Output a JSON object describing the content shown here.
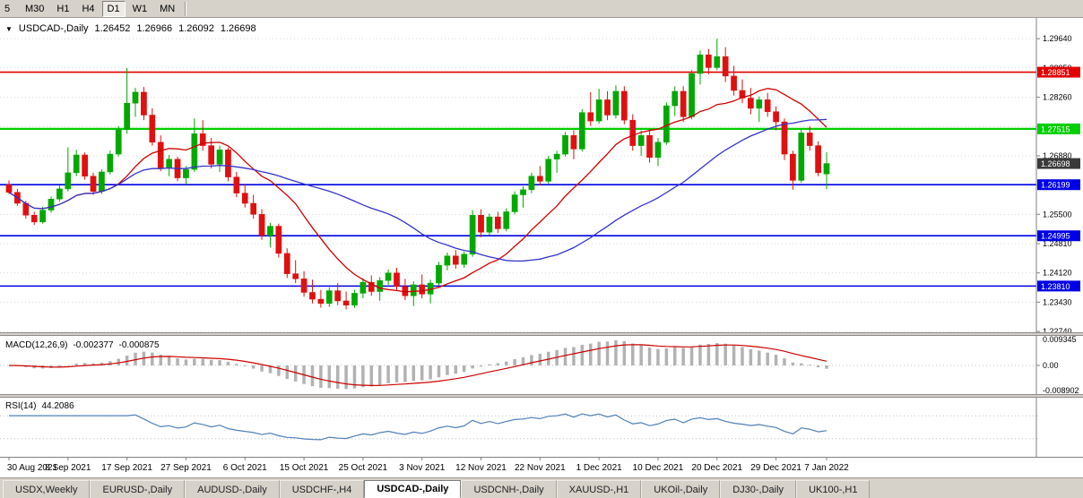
{
  "toolbar": {
    "timeframes": [
      "5",
      "M30",
      "H1",
      "H4",
      "D1",
      "W1",
      "MN"
    ],
    "active": "D1"
  },
  "chart": {
    "dropdown_icon": "▼",
    "symbol_label": "USDCAD-,Daily",
    "open": "1.26452",
    "high": "1.26966",
    "low": "1.26092",
    "close": "1.26698"
  },
  "price_axis": {
    "ticks": [
      "1.29640",
      "1.28950",
      "1.28260",
      "1.27570",
      "1.26880",
      "1.26190",
      "1.25500",
      "1.24810",
      "1.24120",
      "1.23430",
      "1.22740"
    ],
    "levels": [
      {
        "label": "1.28851",
        "price": 1.28851,
        "color": "#e00000",
        "width": 1.6,
        "kind": "resistance-line"
      },
      {
        "label": "1.27515",
        "price": 1.27515,
        "color": "#00ce00",
        "width": 2.2,
        "kind": "pivot-line"
      },
      {
        "label": "1.26199",
        "price": 1.26199,
        "color": "#0000e6",
        "width": 1.6,
        "kind": "support-line"
      },
      {
        "label": "1.24995",
        "price": 1.24995,
        "color": "#0000e6",
        "width": 1.6,
        "kind": "support-line"
      },
      {
        "label": "1.23810",
        "price": 1.2381,
        "color": "#0000e6",
        "width": 1.6,
        "kind": "support-line"
      }
    ],
    "current_price": {
      "label": "1.26698",
      "price": 1.26698,
      "color": "#3a3a3a"
    }
  },
  "macd": {
    "label": "MACD(12,26,9)",
    "main_value": "-0.002377",
    "signal_value": "-0.000875",
    "axis": [
      "0.009345",
      "0.00",
      "-0.008902"
    ]
  },
  "rsi": {
    "label": "RSI(14)",
    "value": "44.2086",
    "levels": [
      "70",
      "30"
    ],
    "level_values": [
      70,
      30
    ]
  },
  "time_axis": {
    "labels": [
      "30 Aug 2021",
      "8 Sep 2021",
      "17 Sep 2021",
      "27 Sep 2021",
      "6 Oct 2021",
      "15 Oct 2021",
      "25 Oct 2021",
      "3 Nov 2021",
      "12 Nov 2021",
      "22 Nov 2021",
      "1 Dec 2021",
      "10 Dec 2021",
      "20 Dec 2021",
      "29 Dec 2021",
      "7 Jan 2022"
    ],
    "indices": [
      0,
      7,
      14,
      21,
      28,
      35,
      42,
      49,
      56,
      63,
      70,
      77,
      84,
      91,
      97
    ]
  },
  "tabs": {
    "items": [
      "USDX,Weekly",
      "EURUSD-,Daily",
      "AUDUSD-,Daily",
      "USDCHF-,H4",
      "USDCAD-,Daily",
      "USDCNH-,Daily",
      "XAUUSD-,H1",
      "UKOil-,Daily",
      "DJ30-,Daily",
      "UK100-,H1"
    ],
    "active": "USDCAD-,Daily"
  },
  "colors": {
    "candle_up": "#00a800",
    "candle_down": "#e01010",
    "ma_fast": "#d00000",
    "ma_slow": "#3333cc",
    "macd_hist": "#b2b2b2",
    "macd_signal": "#cc0000",
    "rsi_line": "#4f80b8",
    "grid": "#d8d8d8",
    "axis_line": "#808080"
  },
  "chart_data": {
    "type": "candlestick",
    "symbol": "USDCAD",
    "timeframe": "Daily",
    "ma_fast_period": 13,
    "ma_slow_period": 34,
    "price_domain": [
      1.2272,
      1.3013
    ],
    "candles": [
      [
        1.262,
        1.263,
        1.2598,
        1.2602
      ],
      [
        1.2602,
        1.261,
        1.257,
        1.2576
      ],
      [
        1.2576,
        1.2582,
        1.254,
        1.2548
      ],
      [
        1.2548,
        1.2556,
        1.2525,
        1.2532
      ],
      [
        1.2532,
        1.2568,
        1.2528,
        1.256
      ],
      [
        1.256,
        1.2592,
        1.2554,
        1.2586
      ],
      [
        1.2586,
        1.2618,
        1.258,
        1.261
      ],
      [
        1.261,
        1.2708,
        1.2604,
        1.2648
      ],
      [
        1.2648,
        1.2702,
        1.264,
        1.269
      ],
      [
        1.269,
        1.2696,
        1.2632,
        1.264
      ],
      [
        1.264,
        1.2648,
        1.2596,
        1.2604
      ],
      [
        1.2604,
        1.2656,
        1.2598,
        1.265
      ],
      [
        1.265,
        1.27,
        1.2644,
        1.2692
      ],
      [
        1.2692,
        1.2758,
        1.2686,
        1.275
      ],
      [
        1.275,
        1.2895,
        1.274,
        1.2812
      ],
      [
        1.2812,
        1.2848,
        1.278,
        1.2838
      ],
      [
        1.2838,
        1.285,
        1.2772,
        1.2784
      ],
      [
        1.2784,
        1.28,
        1.2712,
        1.272
      ],
      [
        1.272,
        1.2736,
        1.2652,
        1.266
      ],
      [
        1.266,
        1.269,
        1.264,
        1.268
      ],
      [
        1.268,
        1.2686,
        1.2628,
        1.2636
      ],
      [
        1.2636,
        1.2664,
        1.262,
        1.2656
      ],
      [
        1.2656,
        1.2776,
        1.265,
        1.274
      ],
      [
        1.274,
        1.2772,
        1.27,
        1.2712
      ],
      [
        1.2712,
        1.273,
        1.2658,
        1.2668
      ],
      [
        1.2668,
        1.2712,
        1.265,
        1.2702
      ],
      [
        1.2702,
        1.2708,
        1.2628,
        1.2638
      ],
      [
        1.2638,
        1.265,
        1.259,
        1.26
      ],
      [
        1.26,
        1.2622,
        1.2566,
        1.2576
      ],
      [
        1.2576,
        1.2596,
        1.254,
        1.255
      ],
      [
        1.255,
        1.2562,
        1.249,
        1.25
      ],
      [
        1.25,
        1.253,
        1.2472,
        1.2522
      ],
      [
        1.2522,
        1.2528,
        1.2448,
        1.2458
      ],
      [
        1.2458,
        1.247,
        1.24,
        1.241
      ],
      [
        1.241,
        1.2442,
        1.2388,
        1.2398
      ],
      [
        1.2398,
        1.2416,
        1.2356,
        1.2366
      ],
      [
        1.2366,
        1.2396,
        1.234,
        1.235
      ],
      [
        1.235,
        1.2372,
        1.233,
        1.234
      ],
      [
        1.234,
        1.2378,
        1.2332,
        1.237
      ],
      [
        1.237,
        1.2388,
        1.2336,
        1.2346
      ],
      [
        1.2346,
        1.2368,
        1.2326,
        1.2336
      ],
      [
        1.2336,
        1.2372,
        1.233,
        1.2364
      ],
      [
        1.2364,
        1.24,
        1.2352,
        1.239
      ],
      [
        1.239,
        1.2406,
        1.2358,
        1.2368
      ],
      [
        1.2368,
        1.2402,
        1.2346,
        1.2394
      ],
      [
        1.2394,
        1.242,
        1.2384,
        1.2412
      ],
      [
        1.2412,
        1.2424,
        1.237,
        1.238
      ],
      [
        1.238,
        1.2398,
        1.2348,
        1.2358
      ],
      [
        1.2358,
        1.2392,
        1.2334,
        1.2384
      ],
      [
        1.2384,
        1.2408,
        1.2352,
        1.2362
      ],
      [
        1.2362,
        1.2396,
        1.234,
        1.2388
      ],
      [
        1.2388,
        1.2438,
        1.2382,
        1.243
      ],
      [
        1.243,
        1.246,
        1.2418,
        1.2452
      ],
      [
        1.2452,
        1.2466,
        1.2422,
        1.2432
      ],
      [
        1.2432,
        1.2462,
        1.2424,
        1.2456
      ],
      [
        1.2456,
        1.256,
        1.245,
        1.2548
      ],
      [
        1.2548,
        1.2562,
        1.2496,
        1.2508
      ],
      [
        1.2508,
        1.2552,
        1.25,
        1.2544
      ],
      [
        1.2544,
        1.2556,
        1.2506,
        1.2516
      ],
      [
        1.2516,
        1.2564,
        1.251,
        1.2556
      ],
      [
        1.2556,
        1.2604,
        1.255,
        1.2596
      ],
      [
        1.2596,
        1.2616,
        1.2566,
        1.2608
      ],
      [
        1.2608,
        1.2648,
        1.26,
        1.264
      ],
      [
        1.264,
        1.2664,
        1.2618,
        1.2628
      ],
      [
        1.2628,
        1.2688,
        1.2622,
        1.268
      ],
      [
        1.268,
        1.27,
        1.2648,
        1.2692
      ],
      [
        1.2692,
        1.2744,
        1.2686,
        1.2736
      ],
      [
        1.2736,
        1.2748,
        1.268,
        1.2704
      ],
      [
        1.2704,
        1.2798,
        1.2698,
        1.279
      ],
      [
        1.279,
        1.2838,
        1.2758,
        1.277
      ],
      [
        1.277,
        1.2846,
        1.2764,
        1.282
      ],
      [
        1.282,
        1.284,
        1.2772,
        1.2784
      ],
      [
        1.2784,
        1.2854,
        1.2776,
        1.284
      ],
      [
        1.284,
        1.2852,
        1.2762,
        1.2772
      ],
      [
        1.2772,
        1.2786,
        1.27,
        1.2712
      ],
      [
        1.2712,
        1.2748,
        1.2688,
        1.2736
      ],
      [
        1.2736,
        1.275,
        1.2672,
        1.2684
      ],
      [
        1.2684,
        1.273,
        1.2664,
        1.272
      ],
      [
        1.272,
        1.2814,
        1.2714,
        1.2806
      ],
      [
        1.2806,
        1.2852,
        1.2782,
        1.284
      ],
      [
        1.284,
        1.2852,
        1.2768,
        1.278
      ],
      [
        1.278,
        1.289,
        1.2774,
        1.2882
      ],
      [
        1.2882,
        1.2936,
        1.2856,
        1.2926
      ],
      [
        1.2926,
        1.294,
        1.288,
        1.2896
      ],
      [
        1.2896,
        1.2964,
        1.289,
        1.2922
      ],
      [
        1.2922,
        1.2944,
        1.2862,
        1.2876
      ],
      [
        1.2876,
        1.29,
        1.283,
        1.2842
      ],
      [
        1.2842,
        1.2868,
        1.2812,
        1.2824
      ],
      [
        1.2824,
        1.2848,
        1.2786,
        1.28
      ],
      [
        1.28,
        1.2828,
        1.2768,
        1.282
      ],
      [
        1.282,
        1.2836,
        1.278,
        1.2792
      ],
      [
        1.2792,
        1.2804,
        1.2748,
        1.2768
      ],
      [
        1.2768,
        1.2776,
        1.2678,
        1.2692
      ],
      [
        1.2692,
        1.27,
        1.2608,
        1.263
      ],
      [
        1.263,
        1.275,
        1.2624,
        1.2742
      ],
      [
        1.2742,
        1.2758,
        1.27,
        1.2712
      ],
      [
        1.2712,
        1.2722,
        1.264,
        1.2648
      ],
      [
        1.26452,
        1.26966,
        1.26092,
        1.26698
      ]
    ]
  }
}
